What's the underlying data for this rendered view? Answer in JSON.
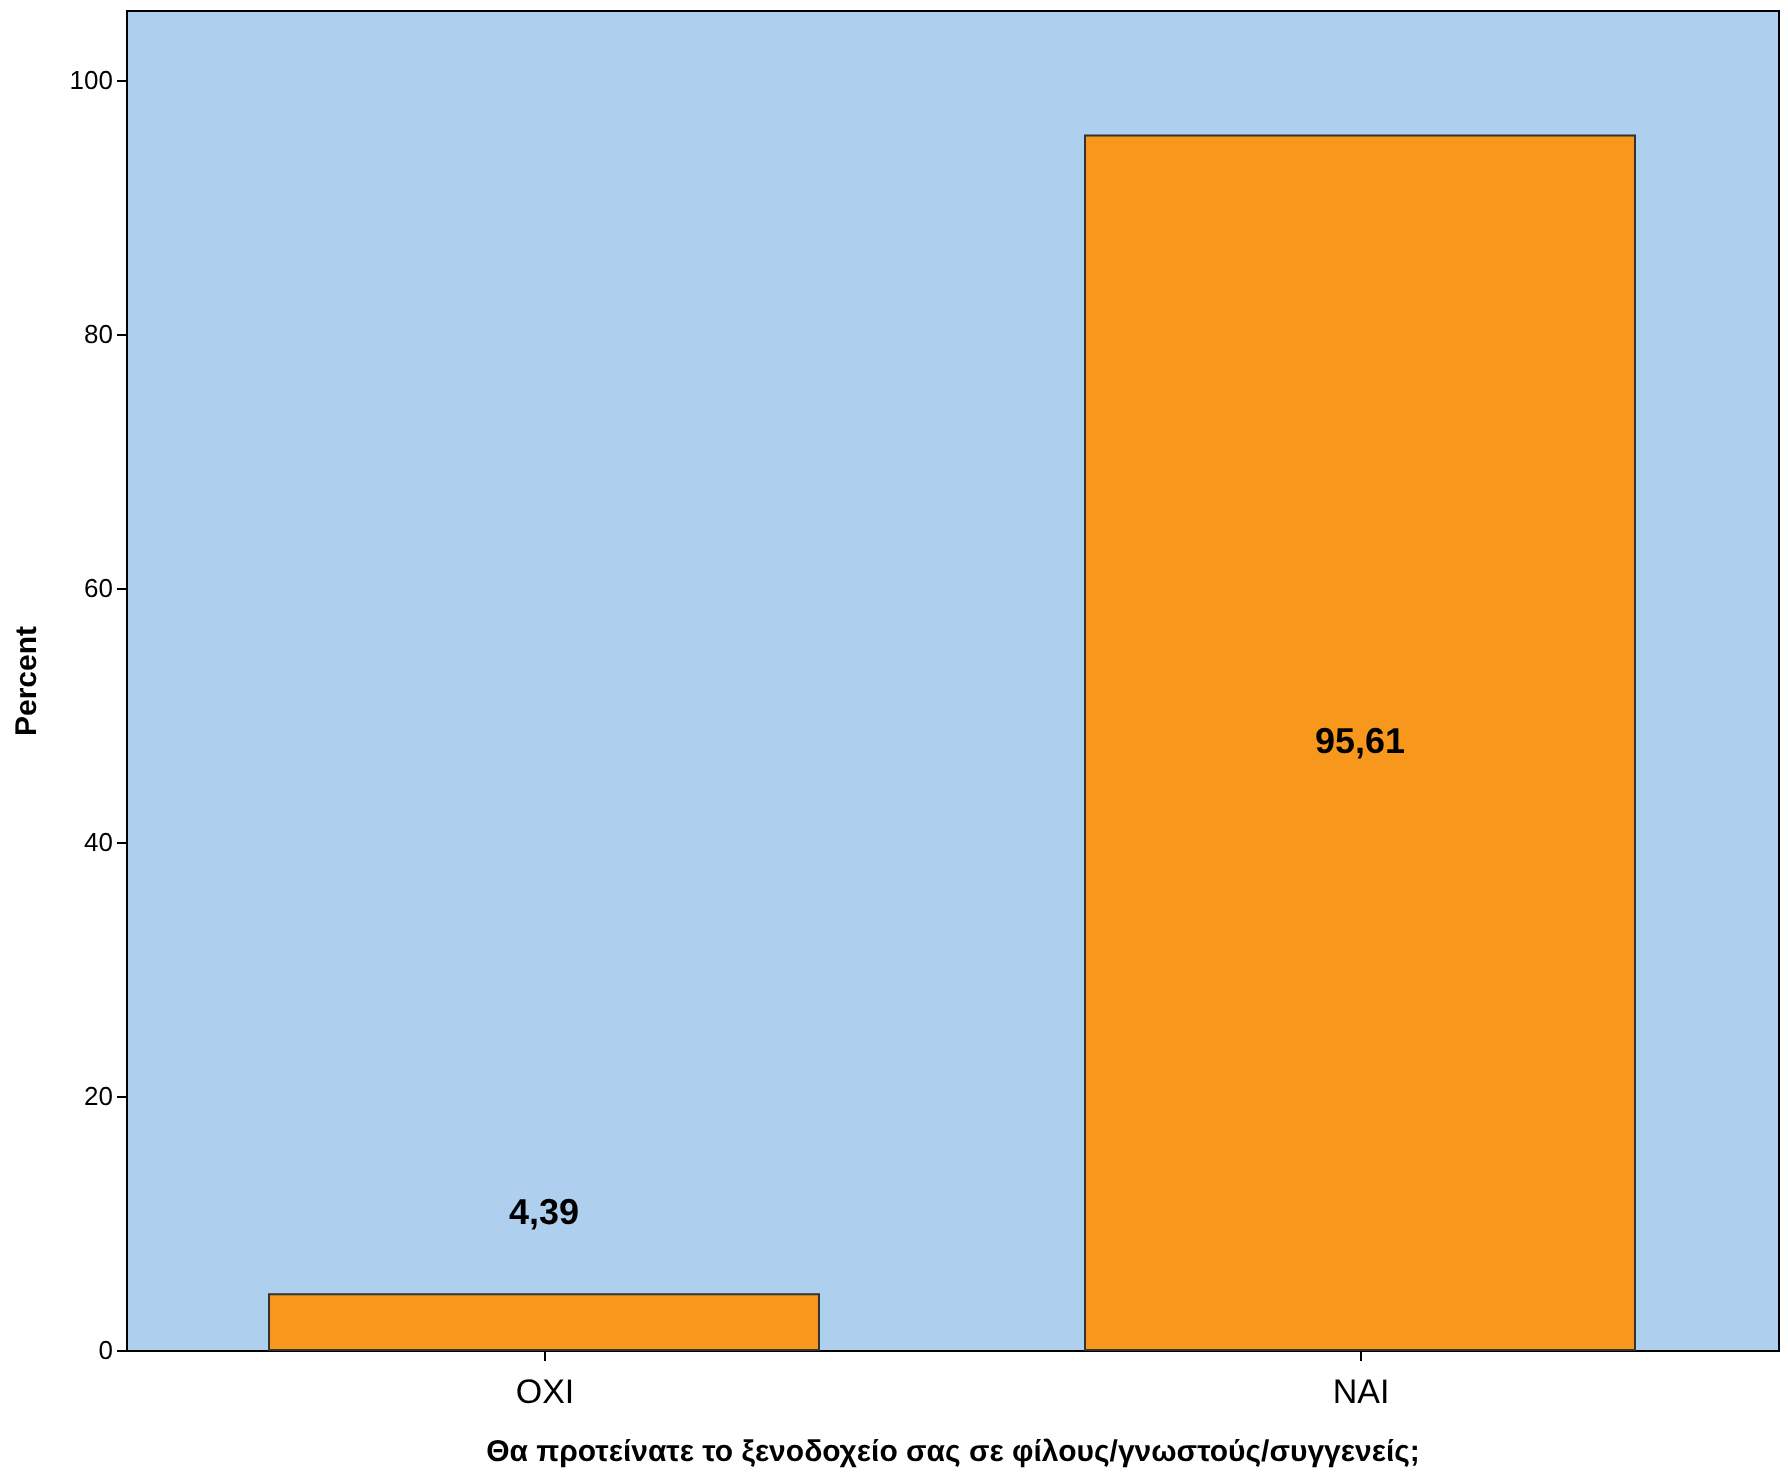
{
  "chart_data": {
    "type": "bar",
    "xlabel": "Θα προτείνατε το ξενοδοχείο σας σε φίλους/γνωστούς/συγγενείς;",
    "ylabel": "Percent",
    "categories": [
      "ΟΧΙ",
      "ΝΑΙ"
    ],
    "values": [
      4.39,
      95.61
    ],
    "value_labels": [
      "4,39",
      "95,61"
    ],
    "color": "#f7981d",
    "ylim": [
      0,
      105.5
    ],
    "yticks": [
      0,
      20,
      40,
      60,
      80,
      100
    ],
    "grid": false
  }
}
